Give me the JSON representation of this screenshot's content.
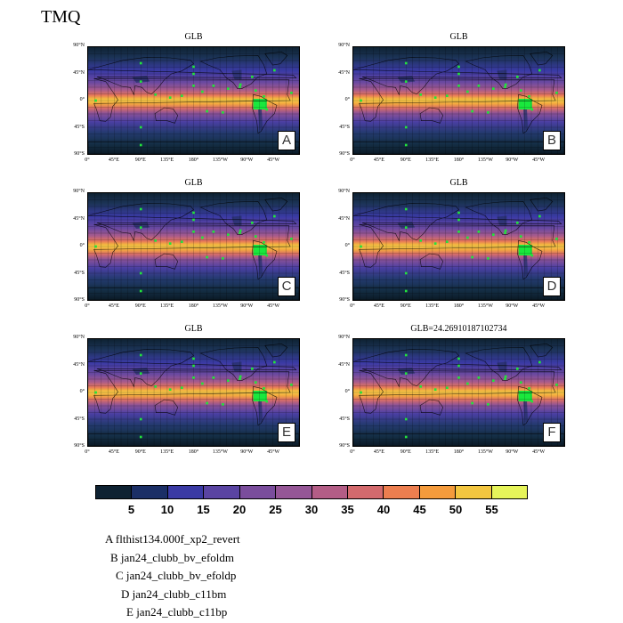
{
  "title": "TMQ",
  "panels": [
    {
      "id": "A",
      "title": "GLB",
      "letter": "A"
    },
    {
      "id": "B",
      "title": "GLB",
      "letter": "B"
    },
    {
      "id": "C",
      "title": "GLB",
      "letter": "C"
    },
    {
      "id": "D",
      "title": "GLB",
      "letter": "D"
    },
    {
      "id": "E",
      "title": "GLB",
      "letter": "E"
    },
    {
      "id": "F",
      "title": "GLB=24.26910187102734",
      "letter": "F"
    }
  ],
  "lat_ticks": [
    "90°N",
    "45°N",
    "0°",
    "45°S",
    "90°S"
  ],
  "lon_ticks": [
    "0°",
    "45°E",
    "90°E",
    "135°E",
    "180°",
    "135°W",
    "90°W",
    "45°W"
  ],
  "colorbar": {
    "labels": [
      "5",
      "10",
      "15",
      "20",
      "25",
      "30",
      "35",
      "40",
      "45",
      "50",
      "55"
    ],
    "colors": [
      "#0e2232",
      "#1b2f66",
      "#3a3aa4",
      "#5a44a2",
      "#7a4d9c",
      "#955696",
      "#b35d86",
      "#d36a6d",
      "#ec7e4f",
      "#f49b3c",
      "#f3c640",
      "#e6f45a"
    ]
  },
  "legend": [
    "A  flthist134.000f_xp2_revert",
    "B  jan24_clubb_bv_efoldm",
    "C  jan24_clubb_bv_efoldp",
    "D  jan24_clubb_c11bm",
    "E  jan24_clubb_c11bp"
  ]
}
